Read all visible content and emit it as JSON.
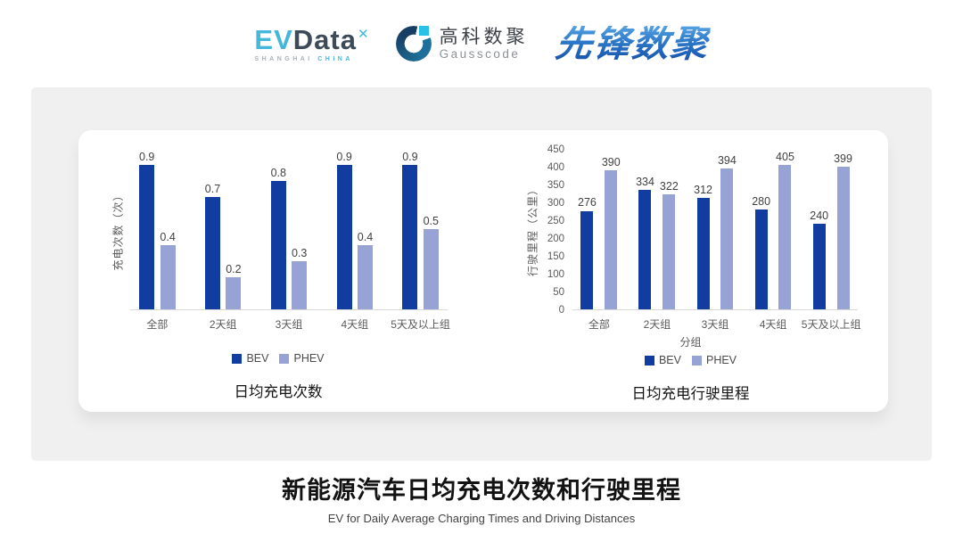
{
  "header": {
    "evdata": {
      "ev": "EV",
      "data": "Data",
      "star": "✕",
      "sub_left": "SHANGHAI",
      "sub_right": "CHINA"
    },
    "gausscode": {
      "cn": "高科数聚",
      "en": "Gausscode"
    },
    "xianfeng": {
      "text": "先锋数聚"
    }
  },
  "chart_data": [
    {
      "type": "bar",
      "title": "日均充电次数",
      "categories": [
        "全部",
        "2天组",
        "3天组",
        "4天组",
        "5天及以上组"
      ],
      "series": [
        {
          "name": "BEV",
          "color": "#113da1",
          "values": [
            0.9,
            0.7,
            0.8,
            0.9,
            0.9
          ]
        },
        {
          "name": "PHEV",
          "color": "#98a3d5",
          "values": [
            0.4,
            0.2,
            0.3,
            0.4,
            0.5
          ]
        }
      ],
      "ylabel": "充电次数（次）",
      "xlabel": "",
      "ylim": [
        0,
        1.0
      ],
      "y_ticks": null,
      "grid": false,
      "data_labels": true,
      "legend_position": "bottom"
    },
    {
      "type": "bar",
      "title": "日均充电行驶里程",
      "categories": [
        "全部",
        "2天组",
        "3天组",
        "4天组",
        "5天及以上组"
      ],
      "series": [
        {
          "name": "BEV",
          "color": "#113da1",
          "values": [
            276,
            334,
            312,
            280,
            240
          ]
        },
        {
          "name": "PHEV",
          "color": "#98a3d5",
          "values": [
            390,
            322,
            394,
            405,
            399
          ]
        }
      ],
      "ylabel": "行驶里程（公里）",
      "xlabel": "分组",
      "ylim": [
        0,
        450
      ],
      "y_ticks": [
        0,
        50,
        100,
        150,
        200,
        250,
        300,
        350,
        400,
        450
      ],
      "grid": false,
      "data_labels": true,
      "legend_position": "bottom"
    }
  ],
  "footer": {
    "title": "新能源汽车日均充电次数和行驶里程",
    "subtitle": "EV for Daily Average Charging Times and Driving Distances"
  },
  "colors": {
    "bev": "#113da1",
    "phev": "#98a3d5",
    "panel_background": "#f0f0f0",
    "card_background": "#ffffff",
    "axis_line": "#d9d9d9",
    "evdata_accent": "#45b7da",
    "xianfeng_blue": "#2b77c8"
  }
}
